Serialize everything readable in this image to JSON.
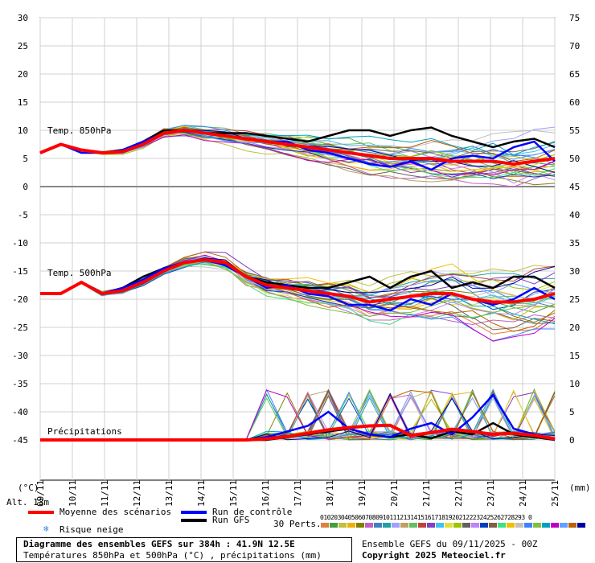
{
  "chart_data": {
    "type": "line",
    "left_axis_unit": "(°C)",
    "right_axis_unit": "(mm)",
    "left_ticks": [
      30,
      25,
      20,
      15,
      10,
      5,
      0,
      -5,
      -10,
      -15,
      -20,
      -25,
      -30,
      -35,
      -40,
      -45
    ],
    "right_ticks": [
      75,
      70,
      65,
      60,
      55,
      50,
      45,
      40,
      35,
      30,
      25,
      20,
      15,
      10,
      5,
      0
    ],
    "dates": [
      "09/11",
      "10/11",
      "11/11",
      "12/11",
      "13/11",
      "14/11",
      "15/11",
      "16/11",
      "17/11",
      "18/11",
      "19/11",
      "20/11",
      "21/11",
      "22/11",
      "23/11",
      "24/11",
      "25/11"
    ],
    "panel_labels": {
      "t850": "Temp. 850hPa",
      "t500": "Temp. 500hPa",
      "precip": "Précipitations"
    },
    "series": [
      {
        "name": "Moyenne des scénarios",
        "color": "#ff0000",
        "t850": [
          6,
          7.5,
          6.5,
          6,
          6.2,
          7.5,
          9.5,
          10,
          9.5,
          9,
          8.5,
          8,
          7.5,
          7,
          6.5,
          6,
          5.5,
          5,
          5,
          5,
          4.5,
          4.5,
          4.5,
          4,
          4.5,
          5
        ],
        "t500": [
          -19,
          -19,
          -17,
          -19,
          -18.5,
          -17,
          -15,
          -13.5,
          -13,
          -13.5,
          -16,
          -17.5,
          -18,
          -18.5,
          -19,
          -19.5,
          -20.5,
          -20,
          -19.5,
          -19,
          -19,
          -20,
          -20.5,
          -20.5,
          -20,
          -19
        ],
        "precip": [
          0,
          0,
          0,
          0,
          0,
          0,
          0,
          0,
          0,
          0,
          0,
          0.2,
          0.6,
          1.2,
          1.8,
          2.2,
          2.5,
          2.6,
          0.8,
          1.3,
          1.9,
          1.5,
          1.0,
          1.2,
          0.8,
          0.2
        ]
      },
      {
        "name": "Run de contrôle",
        "color": "#0000ff",
        "t850": [
          6,
          7.5,
          6,
          6,
          6.5,
          8,
          9.5,
          10,
          9.5,
          9,
          8.5,
          8,
          8,
          6.5,
          6,
          5,
          4,
          3.5,
          4.5,
          3,
          5,
          5.5,
          5,
          7,
          8,
          4.5
        ],
        "t500": [
          -19,
          -19,
          -17,
          -19,
          -18,
          -16.5,
          -14.5,
          -13.5,
          -13,
          -14,
          -16,
          -18,
          -17.5,
          -19,
          -19.5,
          -21,
          -21,
          -22,
          -20,
          -21,
          -19,
          -20,
          -21,
          -20,
          -18,
          -20
        ],
        "precip": [
          0,
          0,
          0,
          0,
          0,
          0,
          0,
          0,
          0,
          0,
          0,
          0.5,
          1.5,
          2.5,
          5,
          2,
          1,
          0.5,
          2,
          3,
          1,
          4,
          8,
          2,
          1,
          0
        ]
      },
      {
        "name": "Run GFS",
        "color": "#000000",
        "t850": [
          6,
          7.5,
          6.5,
          6,
          6.5,
          8,
          10,
          10,
          9.5,
          9.5,
          9.5,
          9,
          8.5,
          8,
          9,
          10,
          10,
          9,
          10,
          10.5,
          9,
          8,
          7,
          8,
          8.5,
          7
        ],
        "t500": [
          -19,
          -19,
          -17,
          -19,
          -18,
          -16,
          -14.5,
          -13.5,
          -13,
          -13.5,
          -16,
          -17,
          -17.5,
          -18,
          -18,
          -17,
          -16,
          -18,
          -16,
          -15,
          -18,
          -17,
          -18,
          -16,
          -16,
          -18
        ],
        "precip": [
          0,
          0,
          0,
          0,
          0,
          0,
          0,
          0,
          0,
          0,
          0,
          0,
          0.5,
          1,
          1.5,
          2,
          1,
          0.5,
          1,
          0.3,
          1.5,
          1,
          3,
          1,
          0.5,
          0
        ]
      }
    ]
  },
  "legend": {
    "mean_label": "Moyenne des scénarios",
    "control_label": "Run de contrôle",
    "gfs_label": "Run GFS",
    "snow_label": "Risque neige",
    "snow_icon": "❄",
    "perts_label": "30 Perts.",
    "pert_numbers": "01020304050607080910111213141516171819202122232425262728293 0"
  },
  "altitude": "Alt. 13m",
  "info": {
    "title": "Diagramme des ensembles GEFS sur 384h : 41.9N 12.5E",
    "subtitle": "Températures 850hPa et 500hPa (°C) , précipitations (mm)",
    "run": "Ensemble GEFS du 09/11/2025 - 00Z",
    "copyright": "Copyright 2025 Meteociel.fr"
  },
  "pert_colors": [
    "#e08040",
    "#40a040",
    "#c0c040",
    "#f0b000",
    "#808000",
    "#c060c0",
    "#4080c0",
    "#20a0a0",
    "#a0a0ff",
    "#c0a060",
    "#60c060",
    "#c04040",
    "#8040c0",
    "#40c0f0",
    "#e0e040",
    "#a0c000",
    "#606060",
    "#c080ff",
    "#0040c0",
    "#806040",
    "#40e080",
    "#f0c000",
    "#c0c0c0",
    "#4080ff",
    "#80c040",
    "#00a0c0",
    "#c000c0",
    "#60a0ff",
    "#c06000",
    "#0000a0"
  ]
}
